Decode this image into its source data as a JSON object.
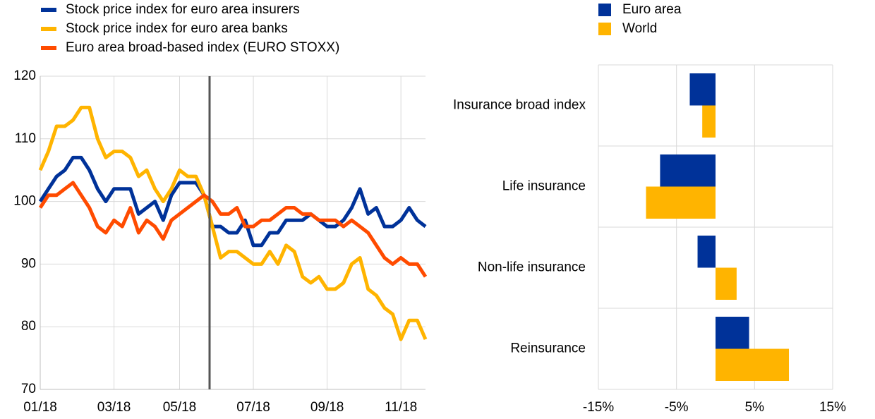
{
  "chart_data": [
    {
      "type": "line",
      "categories": [
        "01/18",
        null,
        null,
        null,
        null,
        null,
        null,
        null,
        null,
        "03/18",
        null,
        null,
        null,
        null,
        null,
        null,
        null,
        "05/18",
        null,
        null,
        null,
        null,
        null,
        null,
        null,
        null,
        "07/18",
        null,
        null,
        null,
        null,
        null,
        null,
        null,
        null,
        "09/18",
        null,
        null,
        null,
        null,
        null,
        null,
        null,
        null,
        "11/18",
        null,
        null,
        null
      ],
      "series": [
        {
          "name": "Stock price index for euro area insurers",
          "color": "#003299",
          "values": [
            100,
            102,
            104,
            105,
            107,
            107,
            105,
            102,
            100,
            102,
            102,
            102,
            98,
            99,
            100,
            97,
            101,
            103,
            103,
            103,
            101,
            96,
            96,
            95,
            95,
            97,
            93,
            93,
            95,
            95,
            97,
            97,
            97,
            98,
            97,
            96,
            96,
            97,
            99,
            102,
            98,
            99,
            96,
            96,
            97,
            99,
            97,
            96
          ]
        },
        {
          "name": "Stock price index for euro area banks",
          "color": "#ffb400",
          "values": [
            105,
            108,
            112,
            112,
            113,
            115,
            115,
            110,
            107,
            108,
            108,
            107,
            104,
            105,
            102,
            100,
            102,
            105,
            104,
            104,
            101,
            96,
            91,
            92,
            92,
            91,
            90,
            90,
            92,
            90,
            93,
            92,
            88,
            87,
            88,
            86,
            86,
            87,
            90,
            91,
            86,
            85,
            83,
            82,
            78,
            81,
            81,
            78
          ]
        },
        {
          "name": "Euro area broad-based index (EURO STOXX)",
          "color": "#ff4b00",
          "values": [
            99,
            101,
            101,
            102,
            103,
            101,
            99,
            96,
            95,
            97,
            96,
            99,
            95,
            97,
            96,
            94,
            97,
            98,
            99,
            100,
            101,
            100,
            98,
            98,
            99,
            96,
            96,
            97,
            97,
            98,
            99,
            99,
            98,
            98,
            97,
            97,
            97,
            96,
            97,
            96,
            95,
            93,
            91,
            90,
            91,
            90,
            90,
            88
          ]
        }
      ],
      "ylim": [
        70,
        120
      ],
      "yticks": [
        70,
        80,
        90,
        100,
        110,
        120
      ],
      "grid": true
    },
    {
      "type": "hbar",
      "categories": [
        "Insurance broad index",
        "Life insurance",
        "Non-life insurance",
        "Reinsurance"
      ],
      "series": [
        {
          "name": "Euro area",
          "color": "#003299",
          "values": [
            -3.3,
            -7.1,
            -2.3,
            4.3
          ]
        },
        {
          "name": "World",
          "color": "#ffb400",
          "values": [
            -1.7,
            -8.9,
            2.7,
            9.4
          ]
        }
      ],
      "xlim": [
        -15,
        15
      ],
      "xticks": [
        {
          "value": -15,
          "label": "-15%"
        },
        {
          "value": -5,
          "label": "-5%"
        },
        {
          "value": 5,
          "label": "5%"
        },
        {
          "value": 15,
          "label": "15%"
        }
      ],
      "grid": true
    }
  ]
}
